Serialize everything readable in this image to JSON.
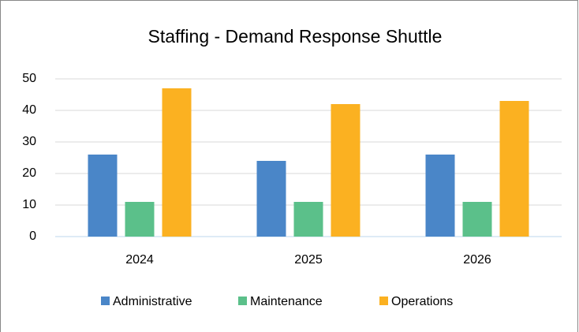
{
  "chart_data": {
    "type": "bar",
    "title": "Staffing - Demand Response Shuttle",
    "categories": [
      "2024",
      "2025",
      "2026"
    ],
    "series": [
      {
        "name": "Administrative",
        "color": "#4a86c8",
        "values": [
          26,
          24,
          26
        ]
      },
      {
        "name": "Maintenance",
        "color": "#5bc08a",
        "values": [
          11,
          11,
          11
        ]
      },
      {
        "name": "Operations",
        "color": "#fbb121",
        "values": [
          47,
          42,
          43
        ]
      }
    ],
    "ylim": [
      0,
      50
    ],
    "yticks": [
      0,
      10,
      20,
      30,
      40,
      50
    ],
    "grid": true,
    "legend": "bottom"
  }
}
